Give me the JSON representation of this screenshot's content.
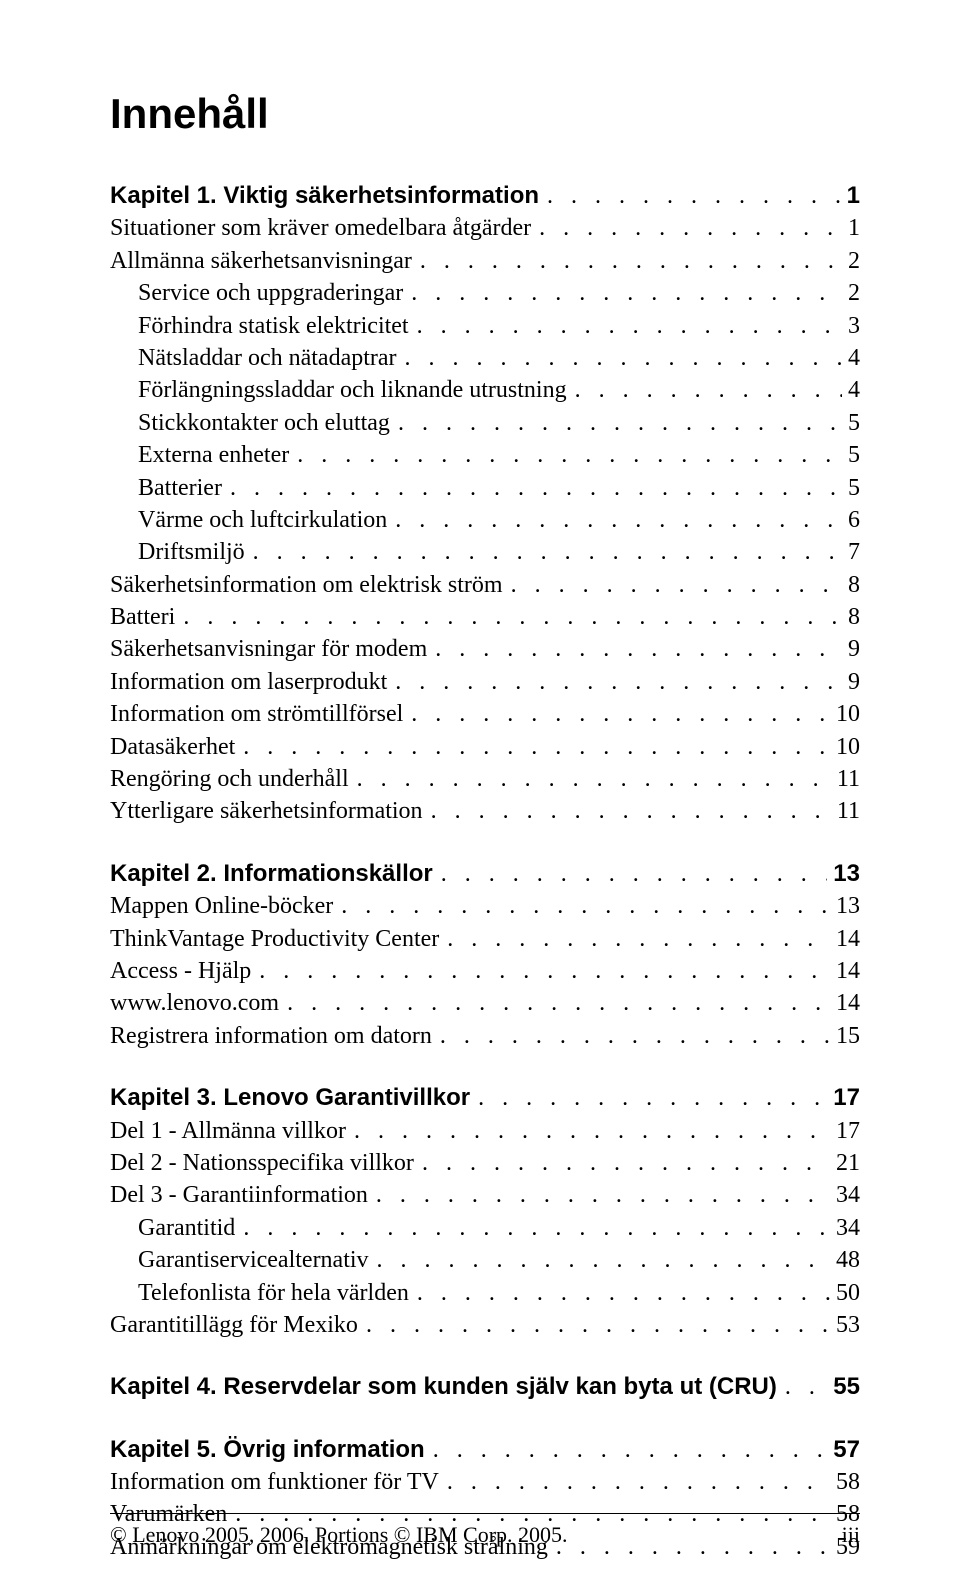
{
  "title": "Innehåll",
  "footer": {
    "left": "© Lenovo 2005, 2006. Portions © IBM Corp. 2005.",
    "right": "iii"
  },
  "sections": [
    {
      "entries": [
        {
          "label": "Kapitel 1. Viktig säkerhetsinformation",
          "page": "1",
          "strong": true,
          "indent": 0
        },
        {
          "label": "Situationer som kräver omedelbara åtgärder",
          "page": "1",
          "strong": false,
          "indent": 0
        },
        {
          "label": "Allmänna säkerhetsanvisningar",
          "page": "2",
          "strong": false,
          "indent": 0
        },
        {
          "label": "Service och uppgraderingar",
          "page": "2",
          "strong": false,
          "indent": 1
        },
        {
          "label": "Förhindra statisk elektricitet",
          "page": "3",
          "strong": false,
          "indent": 1
        },
        {
          "label": "Nätsladdar och nätadaptrar",
          "page": "4",
          "strong": false,
          "indent": 1
        },
        {
          "label": "Förlängningssladdar och liknande utrustning",
          "page": "4",
          "strong": false,
          "indent": 1
        },
        {
          "label": "Stickkontakter och eluttag",
          "page": "5",
          "strong": false,
          "indent": 1
        },
        {
          "label": "Externa enheter",
          "page": "5",
          "strong": false,
          "indent": 1
        },
        {
          "label": "Batterier",
          "page": "5",
          "strong": false,
          "indent": 1
        },
        {
          "label": "Värme och luftcirkulation",
          "page": "6",
          "strong": false,
          "indent": 1
        },
        {
          "label": "Driftsmiljö",
          "page": "7",
          "strong": false,
          "indent": 1
        },
        {
          "label": "Säkerhetsinformation om elektrisk ström",
          "page": "8",
          "strong": false,
          "indent": 0
        },
        {
          "label": "Batteri",
          "page": "8",
          "strong": false,
          "indent": 0
        },
        {
          "label": "Säkerhetsanvisningar för modem",
          "page": "9",
          "strong": false,
          "indent": 0
        },
        {
          "label": "Information om laserprodukt",
          "page": "9",
          "strong": false,
          "indent": 0
        },
        {
          "label": "Information om strömtillförsel",
          "page": "10",
          "strong": false,
          "indent": 0
        },
        {
          "label": "Datasäkerhet",
          "page": "10",
          "strong": false,
          "indent": 0
        },
        {
          "label": "Rengöring och underhåll",
          "page": "11",
          "strong": false,
          "indent": 0
        },
        {
          "label": "Ytterligare säkerhetsinformation",
          "page": "11",
          "strong": false,
          "indent": 0
        }
      ]
    },
    {
      "entries": [
        {
          "label": "Kapitel 2. Informationskällor",
          "page": "13",
          "strong": true,
          "indent": 0
        },
        {
          "label": "Mappen Online-böcker",
          "page": "13",
          "strong": false,
          "indent": 0
        },
        {
          "label": "ThinkVantage Productivity Center",
          "page": "14",
          "strong": false,
          "indent": 0
        },
        {
          "label": "Access - Hjälp",
          "page": "14",
          "strong": false,
          "indent": 0
        },
        {
          "label": "www.lenovo.com",
          "page": "14",
          "strong": false,
          "indent": 0
        },
        {
          "label": "Registrera information om datorn",
          "page": "15",
          "strong": false,
          "indent": 0
        }
      ]
    },
    {
      "entries": [
        {
          "label": "Kapitel 3. Lenovo Garantivillkor",
          "page": "17",
          "strong": true,
          "indent": 0
        },
        {
          "label": "Del 1 - Allmänna villkor",
          "page": "17",
          "strong": false,
          "indent": 0
        },
        {
          "label": "Del 2 - Nationsspecifika villkor",
          "page": "21",
          "strong": false,
          "indent": 0
        },
        {
          "label": "Del 3 - Garantiinformation",
          "page": "34",
          "strong": false,
          "indent": 0
        },
        {
          "label": "Garantitid",
          "page": "34",
          "strong": false,
          "indent": 1
        },
        {
          "label": "Garantiservicealternativ",
          "page": "48",
          "strong": false,
          "indent": 1
        },
        {
          "label": "Telefonlista för hela världen",
          "page": "50",
          "strong": false,
          "indent": 1
        },
        {
          "label": "Garantitillägg för Mexiko",
          "page": "53",
          "strong": false,
          "indent": 0
        }
      ]
    },
    {
      "entries": [
        {
          "label": "Kapitel 4. Reservdelar som kunden själv kan byta ut (CRU)",
          "page": "55",
          "strong": true,
          "indent": 0
        }
      ]
    },
    {
      "entries": [
        {
          "label": "Kapitel 5. Övrig information",
          "page": "57",
          "strong": true,
          "indent": 0
        },
        {
          "label": "Information om funktioner för TV",
          "page": "58",
          "strong": false,
          "indent": 0
        },
        {
          "label": "Varumärken",
          "page": "58",
          "strong": false,
          "indent": 0
        },
        {
          "label": "Anmärkningar om elektromagnetisk strålning",
          "page": "59",
          "strong": false,
          "indent": 0
        }
      ]
    }
  ]
}
